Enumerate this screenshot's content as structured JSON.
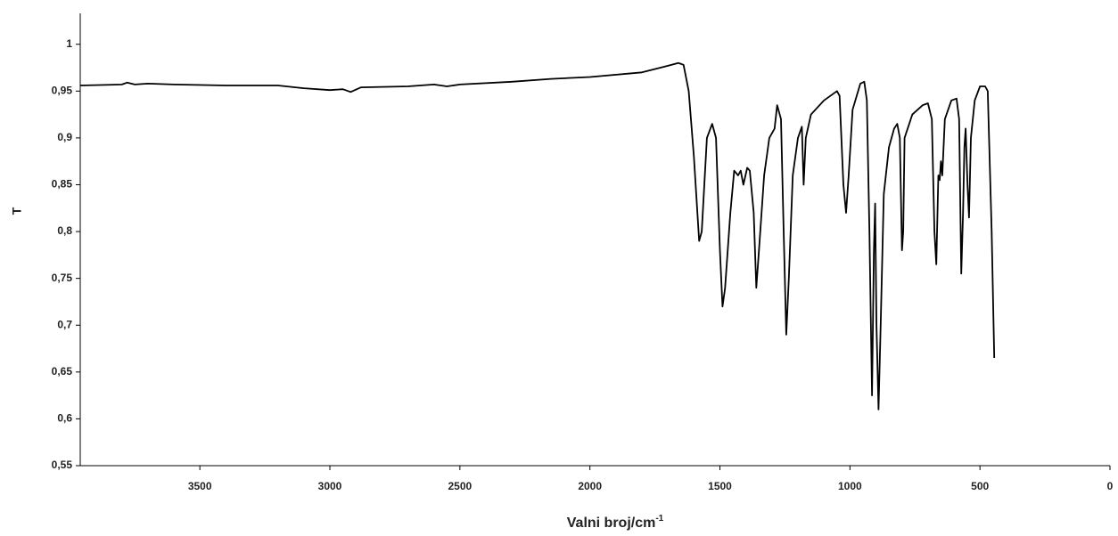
{
  "chart_data": {
    "type": "line",
    "xlabel": "Valni broj/cm",
    "xlabel_sup": "-1",
    "ylabel": "T",
    "color": "#000000",
    "xlim": [
      3960,
      0
    ],
    "xticks": [
      3500,
      3000,
      2500,
      2000,
      1500,
      1000,
      500,
      0
    ],
    "ylim": [
      0.55,
      1.033
    ],
    "yticks": [
      {
        "value": 0.55,
        "label": "0,55"
      },
      {
        "value": 0.6,
        "label": "0,6"
      },
      {
        "value": 0.65,
        "label": "0,65"
      },
      {
        "value": 0.7,
        "label": "0,7"
      },
      {
        "value": 0.75,
        "label": "0,75"
      },
      {
        "value": 0.8,
        "label": "0,8"
      },
      {
        "value": 0.85,
        "label": "0,85"
      },
      {
        "value": 0.9,
        "label": "0,9"
      },
      {
        "value": 0.95,
        "label": "0,95"
      },
      1
    ],
    "x": [
      3960,
      3800,
      3780,
      3750,
      3700,
      3600,
      3400,
      3200,
      3100,
      3000,
      2950,
      2920,
      2880,
      2700,
      2600,
      2550,
      2500,
      2300,
      2150,
      2000,
      1800,
      1700,
      1660,
      1640,
      1620,
      1600,
      1580,
      1570,
      1550,
      1530,
      1515,
      1500,
      1490,
      1480,
      1460,
      1445,
      1430,
      1420,
      1410,
      1395,
      1385,
      1370,
      1360,
      1350,
      1330,
      1310,
      1290,
      1280,
      1265,
      1255,
      1245,
      1235,
      1220,
      1200,
      1185,
      1178,
      1170,
      1150,
      1100,
      1050,
      1040,
      1025,
      1015,
      1005,
      990,
      960,
      945,
      935,
      925,
      915,
      908,
      903,
      898,
      890,
      882,
      870,
      850,
      830,
      818,
      808,
      800,
      795,
      790,
      760,
      720,
      700,
      685,
      675,
      668,
      660,
      655,
      650,
      645,
      635,
      610,
      590,
      580,
      572,
      565,
      560,
      555,
      548,
      542,
      535,
      520,
      500,
      480,
      470,
      455,
      445
    ],
    "values": [
      0.956,
      0.957,
      0.959,
      0.957,
      0.958,
      0.957,
      0.956,
      0.956,
      0.953,
      0.951,
      0.952,
      0.949,
      0.954,
      0.955,
      0.957,
      0.955,
      0.957,
      0.96,
      0.963,
      0.965,
      0.97,
      0.977,
      0.98,
      0.978,
      0.95,
      0.88,
      0.79,
      0.8,
      0.9,
      0.915,
      0.9,
      0.78,
      0.72,
      0.74,
      0.82,
      0.865,
      0.86,
      0.865,
      0.85,
      0.868,
      0.865,
      0.82,
      0.74,
      0.78,
      0.86,
      0.9,
      0.91,
      0.935,
      0.92,
      0.8,
      0.69,
      0.75,
      0.86,
      0.9,
      0.912,
      0.85,
      0.9,
      0.925,
      0.94,
      0.95,
      0.945,
      0.85,
      0.82,
      0.86,
      0.93,
      0.958,
      0.96,
      0.94,
      0.8,
      0.625,
      0.78,
      0.83,
      0.7,
      0.61,
      0.7,
      0.84,
      0.89,
      0.91,
      0.915,
      0.9,
      0.78,
      0.8,
      0.9,
      0.925,
      0.935,
      0.937,
      0.92,
      0.8,
      0.765,
      0.86,
      0.855,
      0.875,
      0.86,
      0.92,
      0.94,
      0.942,
      0.92,
      0.755,
      0.82,
      0.89,
      0.91,
      0.85,
      0.815,
      0.9,
      0.94,
      0.955,
      0.955,
      0.95,
      0.8,
      0.665
    ]
  }
}
